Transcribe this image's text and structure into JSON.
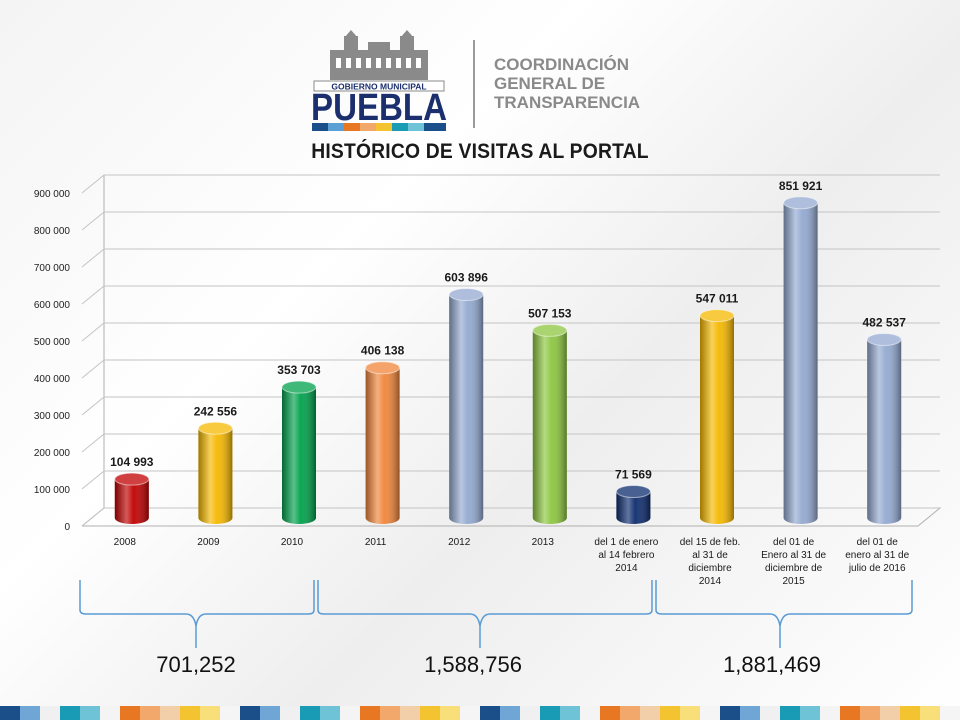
{
  "logo": {
    "top_text": "GOBIERNO MUNICIPAL",
    "city": "PUEBLA",
    "org_line1": "COORDINACIÓN",
    "org_line2": "GENERAL DE",
    "org_line3": "TRANSPARENCIA"
  },
  "chart_data": {
    "type": "bar",
    "title": "HISTÓRICO DE VISITAS AL PORTAL",
    "categories": [
      [
        "2008"
      ],
      [
        "2009"
      ],
      [
        "2010"
      ],
      [
        "2011"
      ],
      [
        "2012"
      ],
      [
        "2013"
      ],
      [
        "del 1 de enero",
        "al 14 febrero",
        "2014"
      ],
      [
        "del 15 de feb.",
        "al 31 de",
        "diciembre",
        "2014"
      ],
      [
        "del 01 de",
        "Enero al 31 de",
        "diciembre de",
        "2015"
      ],
      [
        "del 01 de",
        "enero al 31 de",
        "julio de 2016"
      ]
    ],
    "values": [
      104993,
      242556,
      353703,
      406138,
      603896,
      507153,
      71569,
      547011,
      851921,
      482537
    ],
    "value_labels": [
      "104 993",
      "242 556",
      "353 703",
      "406 138",
      "603 896",
      "507 153",
      "71 569",
      "547 011",
      "851 921",
      "482 537"
    ],
    "bar_colors": [
      "#c00000",
      "#f5b800",
      "#00a04b",
      "#f0853a",
      "#93a9d1",
      "#8cc63f",
      "#0d2c6e",
      "#f5b800",
      "#93a9d1",
      "#93a9d1"
    ],
    "ylim": [
      0,
      900000
    ],
    "yticks": [
      0,
      100000,
      200000,
      300000,
      400000,
      500000,
      600000,
      700000,
      800000,
      900000
    ],
    "ytick_labels": [
      "0",
      "100 000",
      "200 000",
      "300 000",
      "400 000",
      "500 000",
      "600 000",
      "700 000",
      "800 000",
      "900 000"
    ],
    "grid": true,
    "legend": "none"
  },
  "totals": [
    {
      "label": "701,252"
    },
    {
      "label": "1,588,756"
    },
    {
      "label": "1,881,469"
    }
  ],
  "stripe_colors": [
    "#1b4f8a",
    "#6fa6d6",
    "#f0f0f0",
    "#1a9bb5",
    "#6fc3d6",
    "#f4f4f4",
    "#e87722",
    "#f3a86b",
    "#f2cfa8",
    "#f4c430",
    "#f9df7a",
    "#f5f5f5"
  ]
}
